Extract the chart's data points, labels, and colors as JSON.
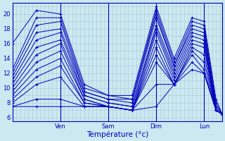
{
  "background_color": "#cce8f0",
  "grid_color": "#a8c8d8",
  "line_color": "#0000bb",
  "xlabel": "Température (°c)",
  "xtick_labels": [
    "Ven",
    "Sam",
    "Dim",
    "Lun"
  ],
  "xtick_positions": [
    48,
    96,
    144,
    192
  ],
  "ytick_start": 6,
  "ytick_end": 20,
  "ytick_step": 2,
  "ylim": [
    5.5,
    21.5
  ],
  "xlim": [
    0,
    210
  ],
  "num_hours": 210,
  "series": [
    [
      16.0,
      20.5,
      20.0,
      10.5,
      9.0,
      9.0,
      21.0,
      14.0,
      19.5,
      19.0,
      8.5,
      6.5
    ],
    [
      12.5,
      19.5,
      19.5,
      10.0,
      9.0,
      8.5,
      20.5,
      13.5,
      19.0,
      18.5,
      8.0,
      6.5
    ],
    [
      12.0,
      18.5,
      19.0,
      9.5,
      8.5,
      8.5,
      20.0,
      13.0,
      18.5,
      18.0,
      7.5,
      6.5
    ],
    [
      11.5,
      17.5,
      18.0,
      9.5,
      8.5,
      8.0,
      19.5,
      13.0,
      18.0,
      17.5,
      7.5,
      6.5
    ],
    [
      11.0,
      16.5,
      17.5,
      9.0,
      8.0,
      7.5,
      18.5,
      12.5,
      17.5,
      17.0,
      7.0,
      6.5
    ],
    [
      10.5,
      15.5,
      16.5,
      9.0,
      8.0,
      7.5,
      18.0,
      12.0,
      17.0,
      16.5,
      7.0,
      6.5
    ],
    [
      10.0,
      14.5,
      16.0,
      8.5,
      7.5,
      7.0,
      17.5,
      11.5,
      16.5,
      16.0,
      7.0,
      6.5
    ],
    [
      9.5,
      13.5,
      15.0,
      8.5,
      7.5,
      7.0,
      16.5,
      11.0,
      16.0,
      15.5,
      7.0,
      6.5
    ],
    [
      9.0,
      12.5,
      14.0,
      8.0,
      7.5,
      7.0,
      15.5,
      10.5,
      15.5,
      14.5,
      7.0,
      6.5
    ],
    [
      8.5,
      11.5,
      13.0,
      8.0,
      7.5,
      7.0,
      14.5,
      10.5,
      15.0,
      13.5,
      7.0,
      6.5
    ],
    [
      8.0,
      10.5,
      11.5,
      7.5,
      7.5,
      7.0,
      13.5,
      10.5,
      14.5,
      12.5,
      7.0,
      6.5
    ],
    [
      7.5,
      8.5,
      8.5,
      7.5,
      7.5,
      7.0,
      10.5,
      10.5,
      13.5,
      12.0,
      7.0,
      6.5
    ],
    [
      7.5,
      7.5,
      7.5,
      7.5,
      7.5,
      7.0,
      7.5,
      10.5,
      12.5,
      12.0,
      7.0,
      6.5
    ]
  ],
  "series_x_fractions": [
    0.0,
    0.114,
    0.229,
    0.343,
    0.457,
    0.571,
    0.686,
    0.771,
    0.857,
    0.914,
    0.971,
    1.0
  ]
}
